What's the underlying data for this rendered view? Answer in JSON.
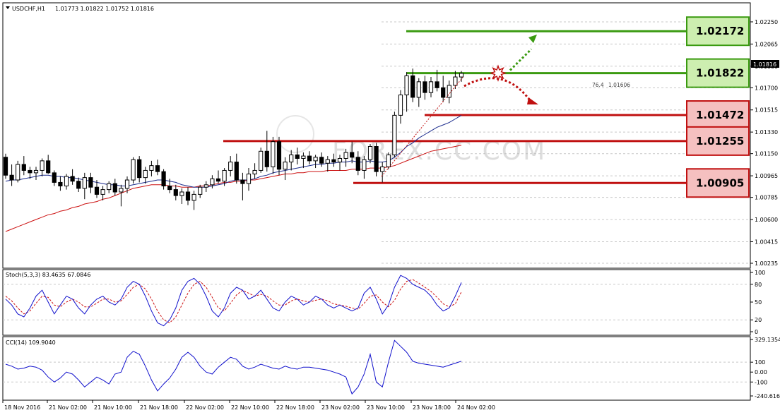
{
  "window": {
    "title_symbol": "USDCHF,H1",
    "ohlc": "1.01773 1.01822 1.01752 1.01816",
    "watermark": "FOREX.CC.COM"
  },
  "colors": {
    "background": "#ffffff",
    "grid": "#c8c8c8",
    "bull_candle_body": "#ffffff",
    "bear_candle_body": "#000000",
    "candle_outline": "#000000",
    "ma_fast": "#1a2a8c",
    "ma_slow": "#cc1010",
    "resistance_green": "#3a9a10",
    "box_green_fill": "#cdeeb0",
    "support_red": "#c01010",
    "box_red_fill": "#f5c0c0",
    "stoch_main": "#1010cc",
    "stoch_signal": "#cc1010",
    "cci_line": "#1010cc"
  },
  "level_labels": [
    {
      "label": "1.02172",
      "kind": "resistance"
    },
    {
      "label": "1.01822",
      "kind": "resistance"
    },
    {
      "label": "1.01472",
      "kind": "support"
    },
    {
      "label": "1.01255",
      "kind": "support"
    },
    {
      "label": "1.00905",
      "kind": "support"
    }
  ],
  "fib_note": {
    "text": "76.4",
    "value": "1.01606"
  },
  "stoch_panel": {
    "title": "Stoch(5,3,3) 83.4635 67.0846"
  },
  "cci_panel": {
    "title": "CCI(14) 109.9040"
  },
  "chart_data": [
    {
      "type": "candlestick",
      "title": "USDCHF,H1",
      "ylim": [
        1.00235,
        1.0235
      ],
      "price_ticks": [
        "1.02250",
        "1.02065",
        "1.01880",
        "1.01700",
        "1.01515",
        "1.01330",
        "1.01150",
        "1.00965",
        "1.00785",
        "1.00600",
        "1.00415",
        "1.00235"
      ],
      "current_price": "1.01816",
      "x_tick_labels": [
        "18 Nov 2016",
        "21 Nov 02:00",
        "21 Nov 10:00",
        "21 Nov 18:00",
        "22 Nov 02:00",
        "22 Nov 10:00",
        "22 Nov 18:00",
        "23 Nov 02:00",
        "23 Nov 10:00",
        "23 Nov 18:00",
        "24 Nov 02:00"
      ],
      "candles": [
        [
          1.0112,
          1.0115,
          1.0094,
          1.0097
        ],
        [
          1.0097,
          1.0106,
          1.0088,
          1.0093
        ],
        [
          1.0093,
          1.0109,
          1.0091,
          1.0106
        ],
        [
          1.0106,
          1.0113,
          1.0097,
          1.0101
        ],
        [
          1.0101,
          1.0104,
          1.0094,
          1.0099
        ],
        [
          1.0099,
          1.0104,
          1.0093,
          1.0101
        ],
        [
          1.0101,
          1.0111,
          1.0096,
          1.0109
        ],
        [
          1.0109,
          1.0114,
          1.0098,
          1.0099
        ],
        [
          1.0099,
          1.0101,
          1.0088,
          1.0091
        ],
        [
          1.0091,
          1.0096,
          1.0084,
          1.0088
        ],
        [
          1.0088,
          1.0098,
          1.0085,
          1.0096
        ],
        [
          1.0096,
          1.0102,
          1.0089,
          1.0092
        ],
        [
          1.0092,
          1.0095,
          1.0083,
          1.0086
        ],
        [
          1.0086,
          1.0099,
          1.0077,
          1.0095
        ],
        [
          1.0095,
          1.0099,
          1.0082,
          1.0087
        ],
        [
          1.0087,
          1.0093,
          1.0078,
          1.0081
        ],
        [
          1.0081,
          1.0088,
          1.0076,
          1.0085
        ],
        [
          1.0085,
          1.0092,
          1.0082,
          1.009
        ],
        [
          1.009,
          1.0094,
          1.008,
          1.0083
        ],
        [
          1.0083,
          1.0089,
          1.0071,
          1.0086
        ],
        [
          1.0086,
          1.0096,
          1.0082,
          1.0093
        ],
        [
          1.0093,
          1.0112,
          1.009,
          1.011
        ],
        [
          1.011,
          1.0113,
          1.0091,
          1.0095
        ],
        [
          1.0095,
          1.0104,
          1.009,
          1.0101
        ],
        [
          1.0101,
          1.0109,
          1.0096,
          1.0105
        ],
        [
          1.0105,
          1.011,
          1.0097,
          1.01
        ],
        [
          1.01,
          1.0102,
          1.0085,
          1.0088
        ],
        [
          1.0088,
          1.0094,
          1.0082,
          1.0085
        ],
        [
          1.0085,
          1.0089,
          1.0076,
          1.008
        ],
        [
          1.008,
          1.0086,
          1.0073,
          1.0083
        ],
        [
          1.0083,
          1.0087,
          1.0072,
          1.0076
        ],
        [
          1.0076,
          1.0084,
          1.0068,
          1.0081
        ],
        [
          1.0081,
          1.0089,
          1.0078,
          1.0087
        ],
        [
          1.0087,
          1.0092,
          1.0083,
          1.0089
        ],
        [
          1.0089,
          1.0097,
          1.0086,
          1.0094
        ],
        [
          1.0094,
          1.0101,
          1.009,
          1.0092
        ],
        [
          1.0092,
          1.0103,
          1.0088,
          1.0101
        ],
        [
          1.0101,
          1.0113,
          1.0096,
          1.0108
        ],
        [
          1.0108,
          1.0115,
          1.009,
          1.0093
        ],
        [
          1.0093,
          1.0099,
          1.0076,
          1.009
        ],
        [
          1.009,
          1.0103,
          1.0084,
          1.0098
        ],
        [
          1.0098,
          1.0107,
          1.0094,
          1.0101
        ],
        [
          1.0101,
          1.012,
          1.0099,
          1.0117
        ],
        [
          1.0117,
          1.0134,
          1.01,
          1.0104
        ],
        [
          1.0104,
          1.0129,
          1.0098,
          1.0125
        ],
        [
          1.0125,
          1.0129,
          1.0097,
          1.0102
        ],
        [
          1.0102,
          1.0112,
          1.0093,
          1.0108
        ],
        [
          1.0108,
          1.0118,
          1.0101,
          1.0114
        ],
        [
          1.0114,
          1.012,
          1.0106,
          1.0111
        ],
        [
          1.0111,
          1.0116,
          1.0103,
          1.0113
        ],
        [
          1.0113,
          1.0117,
          1.0106,
          1.0109
        ],
        [
          1.0109,
          1.0114,
          1.0103,
          1.0112
        ],
        [
          1.0112,
          1.0116,
          1.0104,
          1.0107
        ],
        [
          1.0107,
          1.0113,
          1.01,
          1.011
        ],
        [
          1.011,
          1.0115,
          1.0104,
          1.0108
        ],
        [
          1.0108,
          1.0114,
          1.0101,
          1.0111
        ],
        [
          1.0111,
          1.0119,
          1.0104,
          1.0116
        ],
        [
          1.0116,
          1.0125,
          1.0107,
          1.0112
        ],
        [
          1.0112,
          1.0117,
          1.0097,
          1.0101
        ],
        [
          1.0101,
          1.0113,
          1.0094,
          1.011
        ],
        [
          1.011,
          1.0123,
          1.0107,
          1.0121
        ],
        [
          1.0121,
          1.0124,
          1.0096,
          1.01
        ],
        [
          1.01,
          1.0108,
          1.0091,
          1.0104
        ],
        [
          1.0104,
          1.0116,
          1.0102,
          1.0114
        ],
        [
          1.0114,
          1.015,
          1.0112,
          1.0147
        ],
        [
          1.0147,
          1.0168,
          1.014,
          1.0164
        ],
        [
          1.0164,
          1.0183,
          1.015,
          1.018
        ],
        [
          1.018,
          1.0186,
          1.0158,
          1.0162
        ],
        [
          1.0162,
          1.0178,
          1.0154,
          1.0175
        ],
        [
          1.0175,
          1.018,
          1.016,
          1.0166
        ],
        [
          1.0166,
          1.0179,
          1.0162,
          1.0175
        ],
        [
          1.0175,
          1.0185,
          1.0167,
          1.017
        ],
        [
          1.017,
          1.018,
          1.0158,
          1.0162
        ],
        [
          1.0162,
          1.0176,
          1.0157,
          1.0172
        ],
        [
          1.0172,
          1.0184,
          1.0169,
          1.0179
        ],
        [
          1.0179,
          1.0184,
          1.0175,
          1.0182
        ]
      ],
      "ma_fast": [
        1.0092,
        1.0093,
        1.0093,
        1.0094,
        1.0095,
        1.0096,
        1.0097,
        1.0097,
        1.0096,
        1.0096,
        1.0095,
        1.0095,
        1.0094,
        1.0093,
        1.0092,
        1.0091,
        1.009,
        1.0089,
        1.0089,
        1.0088,
        1.0088,
        1.0089,
        1.009,
        1.0091,
        1.0092,
        1.0093,
        1.0093,
        1.0092,
        1.0091,
        1.0089,
        1.0088,
        1.0087,
        1.0087,
        1.0087,
        1.0088,
        1.0089,
        1.009,
        1.0092,
        1.0093,
        1.0093,
        1.0093,
        1.0094,
        1.0096,
        1.0097,
        1.0099,
        1.01,
        1.0101,
        1.0102,
        1.0103,
        1.0104,
        1.0105,
        1.0106,
        1.0106,
        1.0107,
        1.0107,
        1.0108,
        1.0108,
        1.0109,
        1.0108,
        1.0108,
        1.0109,
        1.0108,
        1.0108,
        1.0109,
        1.0112,
        1.0116,
        1.0121,
        1.0124,
        1.0128,
        1.0131,
        1.0134,
        1.0137,
        1.0139,
        1.0141,
        1.0144,
        1.0147
      ],
      "ma_slow": [
        1.005,
        1.0052,
        1.0054,
        1.0056,
        1.0058,
        1.006,
        1.0062,
        1.0064,
        1.0065,
        1.0067,
        1.0068,
        1.007,
        1.0071,
        1.0073,
        1.0074,
        1.0075,
        1.0077,
        1.0078,
        1.008,
        1.0082,
        1.0084,
        1.0086,
        1.0087,
        1.0088,
        1.0089,
        1.0089,
        1.0089,
        1.0088,
        1.0088,
        1.0087,
        1.0087,
        1.0087,
        1.0088,
        1.0088,
        1.0089,
        1.009,
        1.0091,
        1.0091,
        1.0092,
        1.0092,
        1.0093,
        1.0093,
        1.0094,
        1.0095,
        1.0096,
        1.0097,
        1.0098,
        1.0098,
        1.0099,
        1.0099,
        1.01,
        1.01,
        1.01,
        1.0101,
        1.0101,
        1.0101,
        1.0101,
        1.0102,
        1.0102,
        1.0102,
        1.0103,
        1.0103,
        1.0103,
        1.0104,
        1.0105,
        1.0107,
        1.0109,
        1.0111,
        1.0113,
        1.0115,
        1.0117,
        1.0118,
        1.0119,
        1.012,
        1.0121,
        1.0122
      ]
    },
    {
      "type": "line",
      "title": "Stoch(5,3,3) 83.4635 67.0846",
      "ylim": [
        0,
        100
      ],
      "y_ticks": [
        "100",
        "80",
        "50",
        "20",
        "0"
      ],
      "series": [
        {
          "values": [
            55,
            45,
            30,
            25,
            40,
            60,
            70,
            50,
            30,
            45,
            60,
            55,
            40,
            30,
            45,
            55,
            60,
            50,
            45,
            55,
            75,
            85,
            80,
            60,
            35,
            15,
            10,
            20,
            40,
            70,
            85,
            90,
            80,
            60,
            35,
            25,
            40,
            65,
            75,
            70,
            55,
            60,
            70,
            55,
            40,
            35,
            50,
            60,
            55,
            45,
            50,
            60,
            55,
            45,
            40,
            45,
            40,
            35,
            40,
            65,
            75,
            55,
            30,
            45,
            75,
            95,
            90,
            80,
            75,
            70,
            60,
            45,
            35,
            40,
            60,
            83
          ]
        },
        {
          "values": [
            60,
            52,
            40,
            30,
            35,
            48,
            60,
            58,
            45,
            42,
            50,
            55,
            50,
            42,
            42,
            48,
            55,
            55,
            50,
            52,
            63,
            75,
            80,
            72,
            55,
            35,
            20,
            15,
            25,
            45,
            65,
            80,
            85,
            75,
            58,
            40,
            35,
            48,
            62,
            70,
            65,
            60,
            63,
            60,
            52,
            45,
            45,
            52,
            55,
            52,
            50,
            53,
            55,
            52,
            47,
            45,
            43,
            40,
            38,
            48,
            60,
            62,
            50,
            42,
            53,
            72,
            85,
            88,
            82,
            75,
            68,
            58,
            47,
            42,
            47,
            67
          ]
        }
      ]
    },
    {
      "type": "line",
      "title": "CCI(14) 109.9040",
      "ylim": [
        -240.616,
        329.1354
      ],
      "y_ticks": [
        "329.1354",
        "100",
        "0.00",
        "-100",
        "-240.616"
      ],
      "series": [
        {
          "values": [
            80,
            60,
            30,
            40,
            60,
            50,
            20,
            -50,
            -100,
            -60,
            0,
            -20,
            -80,
            -150,
            -100,
            -50,
            -80,
            -120,
            -20,
            0,
            150,
            210,
            180,
            60,
            -80,
            -190,
            -120,
            -60,
            30,
            150,
            200,
            150,
            60,
            0,
            -20,
            50,
            100,
            150,
            130,
            60,
            30,
            50,
            80,
            60,
            40,
            30,
            60,
            40,
            30,
            50,
            50,
            40,
            30,
            20,
            0,
            -20,
            -50,
            -220,
            -150,
            -20,
            180,
            -100,
            -150,
            100,
            320,
            260,
            200,
            110,
            90,
            80,
            70,
            60,
            50,
            70,
            90,
            110
          ]
        }
      ]
    }
  ]
}
